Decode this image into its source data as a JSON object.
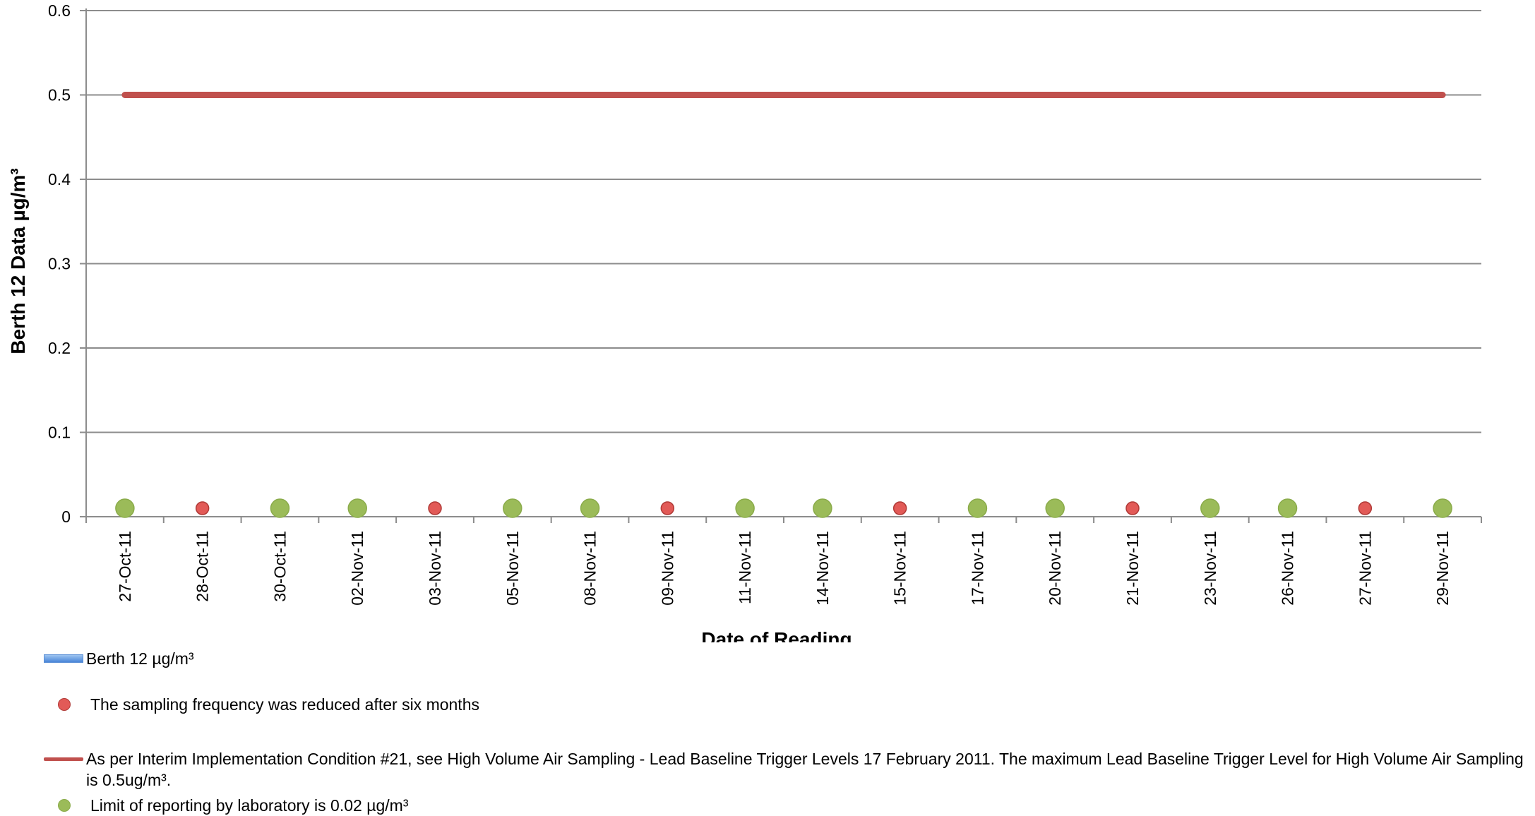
{
  "chart_data": {
    "type": "line",
    "xlabel": "Date of Reading",
    "ylabel": "Berth 12 Data µg/m³",
    "ylim": [
      0,
      0.6
    ],
    "yticks": [
      "0",
      "0.1",
      "0.2",
      "0.3",
      "0.4",
      "0.5",
      "0.6"
    ],
    "ytick_values": [
      0,
      0.1,
      0.2,
      0.3,
      0.4,
      0.5,
      0.6
    ],
    "grid": true,
    "legend_position": "bottom",
    "categories": [
      "27-Oct-11",
      "28-Oct-11",
      "30-Oct-11",
      "02-Nov-11",
      "03-Nov-11",
      "05-Nov-11",
      "08-Nov-11",
      "09-Nov-11",
      "11-Nov-11",
      "14-Nov-11",
      "15-Nov-11",
      "17-Nov-11",
      "20-Nov-11",
      "21-Nov-11",
      "23-Nov-11",
      "26-Nov-11",
      "27-Nov-11",
      "29-Nov-11"
    ],
    "series": [
      {
        "name": "Berth 12  µg/m³",
        "kind": "bar",
        "color": "#4a86d8",
        "values": [
          0,
          0,
          0,
          0,
          0,
          0,
          0,
          0,
          0,
          0,
          0,
          0,
          0,
          0,
          0,
          0,
          0,
          0
        ]
      },
      {
        "name": "The sampling frequency was reduced after six months",
        "kind": "marker",
        "color": "#e25a57",
        "values": [
          null,
          0.01,
          null,
          null,
          0.01,
          null,
          null,
          0.01,
          null,
          null,
          0.01,
          null,
          null,
          0.01,
          null,
          null,
          0.01,
          null
        ]
      },
      {
        "name": "As per Interim Implementation Condition #21, see High Volume Air Sampling - Lead Baseline Trigger Levels 17 February 2011. The maximum Lead Baseline Trigger Level for High Volume Air Sampling is 0.5ug/m³.",
        "kind": "line",
        "color": "#c0504d",
        "values": [
          0.5,
          0.5,
          0.5,
          0.5,
          0.5,
          0.5,
          0.5,
          0.5,
          0.5,
          0.5,
          0.5,
          0.5,
          0.5,
          0.5,
          0.5,
          0.5,
          0.5,
          0.5
        ]
      },
      {
        "name": "Limit of reporting by laboratory is 0.02 µg/m³",
        "kind": "marker",
        "color": "#9bbb59",
        "values": [
          0.01,
          null,
          0.01,
          0.01,
          null,
          0.01,
          0.01,
          null,
          0.01,
          0.01,
          null,
          0.01,
          0.01,
          null,
          0.01,
          0.01,
          null,
          0.01
        ]
      }
    ]
  },
  "legend": {
    "berth": "Berth 12  µg/m³",
    "sampling": "The sampling frequency was reduced after six months",
    "trigger": "As per Interim Implementation Condition #21, see High Volume Air Sampling - Lead Baseline Trigger Levels 17 February 2011. The maximum Lead Baseline Trigger Level for High Volume Air Sampling is 0.5ug/m³.",
    "limit": "Limit of reporting by laboratory is 0.02 µg/m³"
  }
}
